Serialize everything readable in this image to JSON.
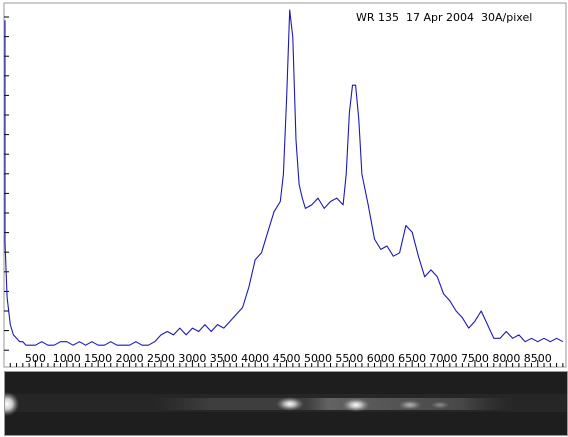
{
  "chart_data": {
    "type": "line",
    "title": "WR 135  17 Apr 2004  30A/pixel",
    "xlabel": "",
    "ylabel": "",
    "xlim": [
      0,
      8950
    ],
    "ylim": [
      0,
      1.0
    ],
    "x_ticks": [
      500,
      1000,
      1500,
      2000,
      2500,
      3000,
      3500,
      4000,
      4500,
      5000,
      5500,
      6000,
      6500,
      7000,
      7500,
      8000,
      8500
    ],
    "x_tick_labels": [
      "500",
      "1000",
      "1500",
      "2000",
      "2500",
      "3000",
      "3500",
      "4000",
      "4500",
      "5000",
      "5500",
      "6000",
      "6500",
      "7000",
      "7500",
      "8000",
      "8500"
    ],
    "grid": false,
    "series": [
      {
        "color": "#1a1ab4",
        "x": [
          -150,
          -100,
          -50,
          0,
          50,
          100,
          150,
          200,
          250,
          300,
          350,
          400,
          500,
          600,
          700,
          800,
          900,
          1000,
          1100,
          1200,
          1300,
          1400,
          1500,
          1600,
          1700,
          1800,
          1900,
          2000,
          2100,
          2200,
          2300,
          2400,
          2500,
          2600,
          2700,
          2800,
          2900,
          3000,
          3100,
          3200,
          3300,
          3400,
          3500,
          3600,
          3700,
          3800,
          3900,
          4000,
          4100,
          4200,
          4300,
          4400,
          4450,
          4500,
          4550,
          4600,
          4650,
          4700,
          4750,
          4800,
          4900,
          5000,
          5100,
          5200,
          5300,
          5400,
          5450,
          5500,
          5550,
          5600,
          5650,
          5700,
          5800,
          5900,
          6000,
          6100,
          6200,
          6300,
          6400,
          6500,
          6600,
          6700,
          6800,
          6900,
          7000,
          7100,
          7200,
          7300,
          7400,
          7500,
          7600,
          7700,
          7800,
          7900,
          8000,
          8100,
          8200,
          8300,
          8400,
          8500,
          8600,
          8700,
          8800,
          8900
        ],
        "y": [
          0.97,
          0.85,
          0.55,
          0.32,
          0.16,
          0.08,
          0.05,
          0.04,
          0.03,
          0.03,
          0.02,
          0.02,
          0.02,
          0.03,
          0.02,
          0.02,
          0.03,
          0.03,
          0.02,
          0.03,
          0.02,
          0.03,
          0.02,
          0.02,
          0.03,
          0.02,
          0.02,
          0.02,
          0.03,
          0.02,
          0.02,
          0.03,
          0.05,
          0.06,
          0.05,
          0.07,
          0.05,
          0.07,
          0.06,
          0.08,
          0.06,
          0.08,
          0.07,
          0.09,
          0.11,
          0.13,
          0.19,
          0.27,
          0.29,
          0.35,
          0.41,
          0.44,
          0.52,
          0.74,
          1.0,
          0.92,
          0.62,
          0.49,
          0.45,
          0.42,
          0.43,
          0.45,
          0.42,
          0.44,
          0.45,
          0.43,
          0.52,
          0.7,
          0.78,
          0.78,
          0.68,
          0.52,
          0.43,
          0.33,
          0.3,
          0.31,
          0.28,
          0.29,
          0.37,
          0.35,
          0.28,
          0.22,
          0.24,
          0.22,
          0.17,
          0.15,
          0.12,
          0.1,
          0.07,
          0.09,
          0.12,
          0.08,
          0.04,
          0.04,
          0.06,
          0.04,
          0.05,
          0.03,
          0.04,
          0.03,
          0.04,
          0.03,
          0.04,
          0.03
        ]
      }
    ]
  }
}
